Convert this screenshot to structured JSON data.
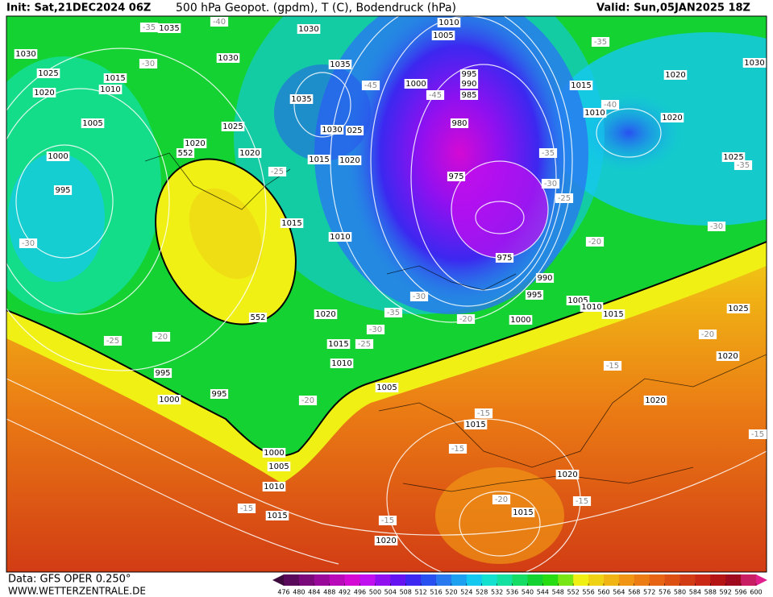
{
  "header": {
    "init": "Init: Sat,21DEC2024 06Z",
    "title": "500 hPa Geopot. (gpdm), T (C), Bodendruck (hPa)",
    "valid": "Valid: Sun,05JAN2025 18Z"
  },
  "footer": {
    "data": "Data: GFS OPER 0.250°",
    "site": "WWW.WETTERZENTRALE.DE"
  },
  "colorbar": {
    "ticks": [
      476,
      480,
      484,
      488,
      492,
      496,
      500,
      504,
      508,
      512,
      516,
      520,
      524,
      528,
      532,
      536,
      540,
      544,
      548,
      552,
      556,
      560,
      564,
      568,
      572,
      576,
      580,
      584,
      588,
      592,
      596,
      600
    ],
    "colors": [
      "#5a0a5a",
      "#7a0a7a",
      "#9a0a9a",
      "#b80ab8",
      "#d40ad4",
      "#c010f0",
      "#9010f0",
      "#6414f0",
      "#3c28f0",
      "#2850f0",
      "#2878f0",
      "#1ea0f0",
      "#14c8f0",
      "#14e0d0",
      "#14e0a0",
      "#14dc64",
      "#14d232",
      "#28dc14",
      "#78e614",
      "#f0f014",
      "#f0d214",
      "#f0b414",
      "#f09614",
      "#eb7d14",
      "#e66414",
      "#dc5014",
      "#d23c14",
      "#c82814",
      "#b41414",
      "#a00a1e",
      "#c81e64"
    ],
    "under_color": "#3c0a3c",
    "over_color": "#e01e8c"
  },
  "isobar_labels": [
    "1035",
    "1030",
    "1010",
    "1005",
    "1030",
    "1030",
    "1035",
    "1025",
    "1015",
    "1010",
    "1020",
    "1000",
    "995",
    "990",
    "985",
    "1035",
    "1005",
    "1025",
    "1030",
    "025",
    "980",
    "1020",
    "1020",
    "1015",
    "1020",
    "1000",
    "975",
    "995",
    "1015",
    "1010",
    "975",
    "990",
    "995",
    "1020",
    "1000",
    "1005",
    "1010",
    "1015",
    "1015",
    "1010",
    "995",
    "1005",
    "995",
    "1000",
    "1015",
    "1000",
    "1005",
    "1010",
    "1015",
    "1020",
    "1015",
    "1020",
    "1015",
    "1020",
    "1030",
    "1010",
    "1020",
    "1025",
    "1025",
    "1020",
    "1020"
  ],
  "temperature_labels": [
    "-35",
    "-35",
    "-30",
    "-40",
    "-45",
    "-45",
    "-40",
    "-35",
    "-25",
    "-30",
    "-25",
    "-35",
    "-30",
    "-30",
    "-20",
    "-30",
    "-35",
    "-30",
    "-25",
    "-20",
    "-25",
    "-20",
    "-20",
    "-20",
    "-15",
    "-15",
    "-15",
    "-15",
    "-15",
    "-15",
    "-20",
    "-15"
  ],
  "height_labels": [
    "552",
    "552"
  ]
}
